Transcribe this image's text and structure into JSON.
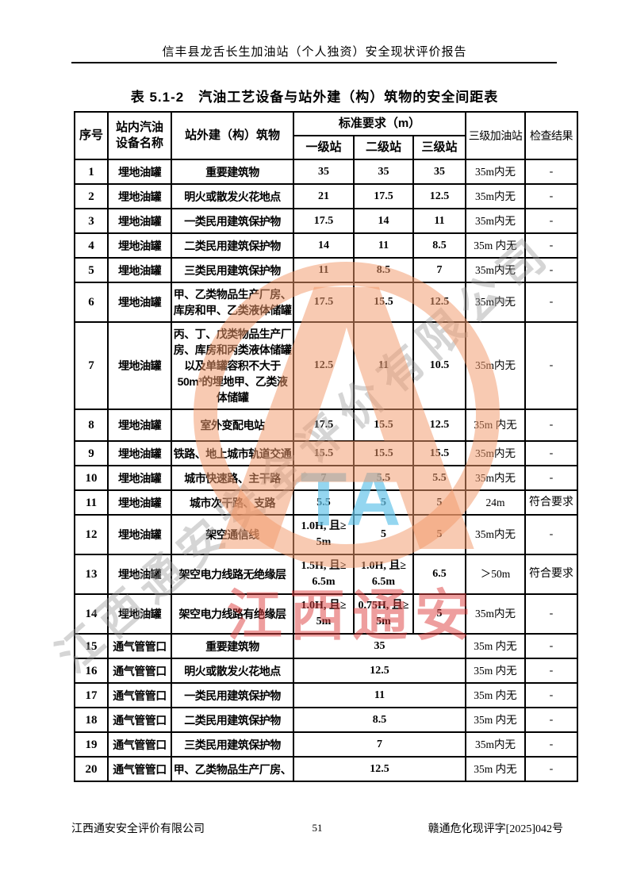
{
  "page": {
    "header": "信丰县龙舌长生加油站（个人独资）安全现状评价报告",
    "title": "表 5.1-2　汽油工艺设备与站外建（构）筑物的安全间距表",
    "footer_left": "江西通安安全评价有限公司",
    "footer_page": "51",
    "footer_right": "赣通危化现评字[2025]042号"
  },
  "watermark": {
    "diagonal_text": "江西通安安全评价有限公司",
    "red_text": "江西通安",
    "blue_text": "TA",
    "logo_letter": "A",
    "colors": {
      "orange": "#F2996B",
      "red": "#DD3E3E",
      "blue": "#66C4EA",
      "gray": "#9B9B9B"
    }
  },
  "table": {
    "headers": {
      "col_index": "序号",
      "col_equipment": "站内汽油\n设备名称",
      "col_building": "站外建（构）筑物",
      "col_standard": "标准要求（m）",
      "sub_cols": [
        "一级站",
        "二级站",
        "三级站"
      ],
      "col_station3": "三级加油站",
      "col_result": "检查结果"
    },
    "rows": [
      {
        "no": "1",
        "equipment": "埋地油罐",
        "building": "重要建筑物",
        "v1": "35",
        "v2": "35",
        "v3": "35",
        "station3": "35m内无",
        "result": "-",
        "span": false
      },
      {
        "no": "2",
        "equipment": "埋地油罐",
        "building": "明火或散发火花地点",
        "v1": "21",
        "v2": "17.5",
        "v3": "12.5",
        "station3": "35m内无",
        "result": "-",
        "span": false
      },
      {
        "no": "3",
        "equipment": "埋地油罐",
        "building": "一类民用建筑保护物",
        "v1": "17.5",
        "v2": "14",
        "v3": "11",
        "station3": "35m内无",
        "result": "-",
        "span": false
      },
      {
        "no": "4",
        "equipment": "埋地油罐",
        "building": "二类民用建筑保护物",
        "v1": "14",
        "v2": "11",
        "v3": "8.5",
        "station3": "35m 内无",
        "result": "-",
        "span": false
      },
      {
        "no": "5",
        "equipment": "埋地油罐",
        "building": "三类民用建筑保护物",
        "v1": "11",
        "v2": "8.5",
        "v3": "7",
        "station3": "35m内无",
        "result": "-",
        "span": false
      },
      {
        "no": "6",
        "equipment": "埋地油罐",
        "building": "甲、乙类物品生产厂房、库房和甲、乙类液体储罐",
        "v1": "17.5",
        "v2": "15.5",
        "v3": "12.5",
        "station3": "35m内无",
        "result": "-",
        "span": false
      },
      {
        "no": "7",
        "equipment": "埋地油罐",
        "building": "丙、丁、戊类物品生产厂房、库房和丙类液体储罐以及单罐容积不大于50m³的埋地甲、乙类液体储罐",
        "v1": "12.5",
        "v2": "11",
        "v3": "10.5",
        "station3": "35m内无",
        "result": "-",
        "span": false
      },
      {
        "no": "8",
        "equipment": "埋地油罐",
        "building": "室外变配电站",
        "v1": "17.5",
        "v2": "15.5",
        "v3": "12.5",
        "station3": "35m 内无",
        "result": "-",
        "span": false
      },
      {
        "no": "9",
        "equipment": "埋地油罐",
        "building": "铁路、地上城市轨道交通",
        "v1": "15.5",
        "v2": "15.5",
        "v3": "15.5",
        "station3": "35m内无",
        "result": "-",
        "span": false
      },
      {
        "no": "10",
        "equipment": "埋地油罐",
        "building": "城市快速路、主干路",
        "v1": "7",
        "v2": "5.5",
        "v3": "5.5",
        "station3": "35m内无",
        "result": "-",
        "span": false
      },
      {
        "no": "11",
        "equipment": "埋地油罐",
        "building": "城市次干路、支路",
        "v1": "5.5",
        "v2": "5",
        "v3": "5",
        "station3": "24m",
        "result": "符合要求",
        "span": false
      },
      {
        "no": "12",
        "equipment": "埋地油罐",
        "building": "架空通信线",
        "v1": "1.0H, 且≥\n5m",
        "v2": "5",
        "v3": "5",
        "station3": "35m内无",
        "result": "-",
        "span": false
      },
      {
        "no": "13",
        "equipment": "埋地油罐",
        "building": "架空电力线路无绝缘层",
        "v1": "1.5H, 且≥\n6.5m",
        "v2": "1.0H, 且≥\n6.5m",
        "v3": "6.5",
        "station3": "＞50m",
        "result": "符合要求",
        "span": false
      },
      {
        "no": "14",
        "equipment": "埋地油罐",
        "building": "架空电力线路有绝缘层",
        "v1": "1.0H, 且≥\n5m",
        "v2": "0.75H, 且≥\n5m",
        "v3": "5",
        "station3": "35m内无",
        "result": "-",
        "span": false
      },
      {
        "no": "15",
        "equipment": "通气管管口",
        "building": "重要建筑物",
        "v1": "35",
        "v2": null,
        "v3": null,
        "station3": "35m 内无",
        "result": "-",
        "span": true
      },
      {
        "no": "16",
        "equipment": "通气管管口",
        "building": "明火或散发火花地点",
        "v1": "12.5",
        "v2": null,
        "v3": null,
        "station3": "35m 内无",
        "result": "-",
        "span": true
      },
      {
        "no": "17",
        "equipment": "通气管管口",
        "building": "一类民用建筑保护物",
        "v1": "11",
        "v2": null,
        "v3": null,
        "station3": "35m 内无",
        "result": "-",
        "span": true
      },
      {
        "no": "18",
        "equipment": "通气管管口",
        "building": "二类民用建筑保护物",
        "v1": "8.5",
        "v2": null,
        "v3": null,
        "station3": "35m 内无",
        "result": "-",
        "span": true
      },
      {
        "no": "19",
        "equipment": "通气管管口",
        "building": "三类民用建筑保护物",
        "v1": "7",
        "v2": null,
        "v3": null,
        "station3": "35m内无",
        "result": "-",
        "span": true
      },
      {
        "no": "20",
        "equipment": "通气管管口",
        "building": "甲、乙类物品生产厂房、",
        "v1": "12.5",
        "v2": null,
        "v3": null,
        "station3": "35m 内无",
        "result": "-",
        "span": true
      }
    ]
  }
}
